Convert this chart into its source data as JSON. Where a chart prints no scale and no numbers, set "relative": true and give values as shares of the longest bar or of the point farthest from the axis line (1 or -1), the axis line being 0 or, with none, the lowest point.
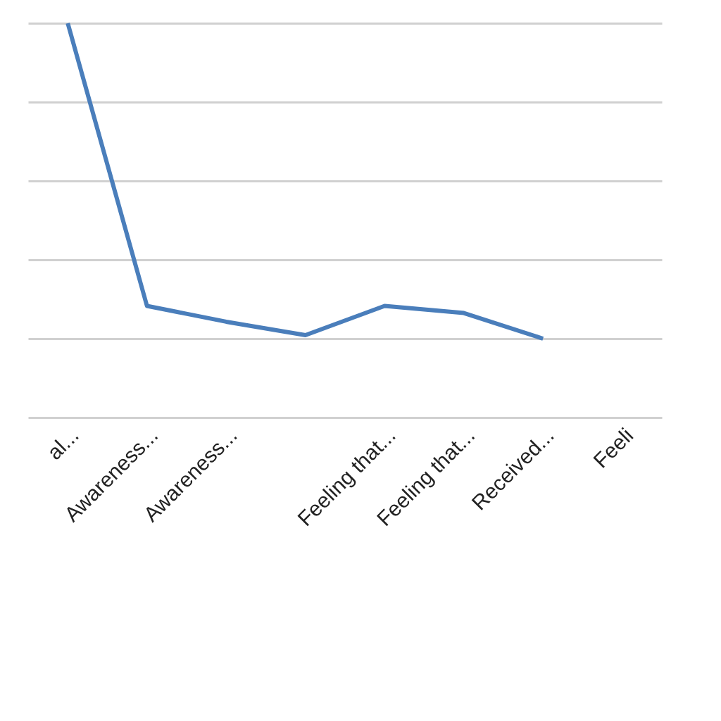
{
  "chart_data": {
    "type": "line",
    "relative": true,
    "categories": [
      "al...",
      "Awareness...",
      "Awareness...",
      null,
      "Feeling that...",
      "Feeling that...",
      "Received...",
      "Feeli"
    ],
    "series": [
      {
        "color": "#4a7ebb",
        "values": [
          1,
          0.283,
          0.243,
          0.209,
          0.283,
          0.265,
          0.2,
          null
        ]
      }
    ],
    "grid": "y",
    "marker": "none",
    "line_style": "solid"
  }
}
